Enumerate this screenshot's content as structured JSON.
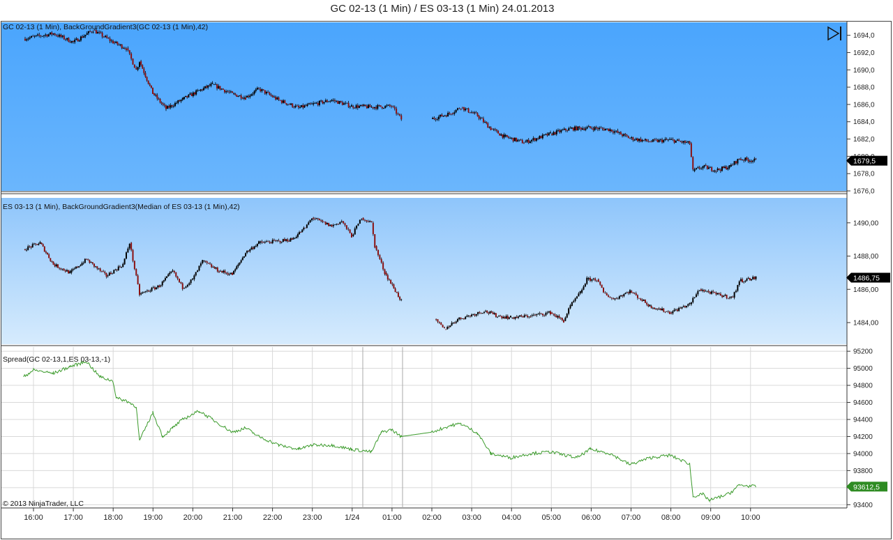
{
  "title": "GC 02-13 (1 Min) / ES 03-13 (1 Min)  24.01.2013",
  "copyright": "© 2013 NinjaTrader, LLC",
  "colors": {
    "panel1_top": "#4aa5fd",
    "panel1_bottom": "#6bb6fd",
    "panel2_top": "#8ec5fb",
    "panel2_bottom": "#d6ebfd",
    "candle_up": "#000000",
    "candle_down": "#8b1010",
    "spread_line": "#3a9a2a",
    "label_bg": "#000000",
    "spread_label_bg": "#2e8b22",
    "grid": "#d8d8d8"
  },
  "chart_data": [
    {
      "type": "line",
      "chart_kind": "candlestick",
      "label": "GC 02-13 (1 Min), BackGroundGradient3(GC 02-13 (1 Min),42)",
      "current_value_label": "1679,5",
      "y_ticks": [
        "1694,0",
        "1692,0",
        "1690,0",
        "1688,0",
        "1686,0",
        "1684,0",
        "1682,0",
        "1680,0",
        "1678,0",
        "1676,0"
      ],
      "ylim": [
        1676,
        1695.5
      ],
      "x": [
        "15:45",
        "16:30",
        "17:00",
        "17:30",
        "18:00",
        "18:20",
        "18:35",
        "18:40",
        "19:00",
        "19:20",
        "19:45",
        "20:10",
        "20:30",
        "21:00",
        "21:20",
        "21:40",
        "22:10",
        "22:40",
        "23:00",
        "23:30",
        "00:00",
        "00:30",
        "01:00",
        "01:15",
        "02:00",
        "02:30",
        "02:45",
        "03:10",
        "03:30",
        "03:50",
        "04:20",
        "05:00",
        "05:30",
        "06:00",
        "06:30",
        "07:00",
        "07:30",
        "08:00",
        "08:30",
        "08:35",
        "08:50",
        "09:10",
        "09:30",
        "09:45",
        "10:10"
      ],
      "values": [
        1693.6,
        1694.2,
        1693.2,
        1694.6,
        1693.2,
        1692.5,
        1690.0,
        1691.0,
        1687.3,
        1685.5,
        1686.6,
        1687.6,
        1688.3,
        1687.2,
        1686.8,
        1687.8,
        1686.5,
        1685.6,
        1686.0,
        1686.5,
        1685.8,
        1685.7,
        1685.8,
        1684.3,
        1684.3,
        1685.0,
        1685.7,
        1684.7,
        1683.2,
        1682.3,
        1681.6,
        1682.6,
        1683.2,
        1683.3,
        1683.1,
        1682.1,
        1681.7,
        1681.9,
        1681.5,
        1678.3,
        1678.8,
        1678.4,
        1678.8,
        1679.7,
        1679.5
      ],
      "gaps_after": [
        "01:15"
      ]
    },
    {
      "type": "line",
      "chart_kind": "candlestick",
      "label": "ES 03-13 (1 Min), BackGroundGradient3(Median of ES 03-13 (1 Min),42)",
      "current_value_label": "1486,75",
      "y_ticks": [
        "1490,00",
        "1488,00",
        "1486,00",
        "1484,00"
      ],
      "ylim": [
        1482.7,
        1491.5
      ],
      "x": [
        "15:45",
        "16:10",
        "16:30",
        "16:55",
        "17:20",
        "17:50",
        "18:15",
        "18:25",
        "18:40",
        "19:10",
        "19:30",
        "19:45",
        "20:00",
        "20:15",
        "20:40",
        "21:00",
        "21:20",
        "21:40",
        "22:10",
        "22:30",
        "22:50",
        "23:00",
        "23:30",
        "23:45",
        "00:00",
        "00:15",
        "00:30",
        "00:35",
        "00:50",
        "01:15",
        "02:05",
        "02:20",
        "02:40",
        "03:20",
        "03:40",
        "04:00",
        "04:30",
        "05:00",
        "05:20",
        "05:30",
        "05:45",
        "05:55",
        "06:10",
        "06:20",
        "06:35",
        "07:00",
        "07:30",
        "08:00",
        "08:30",
        "08:45",
        "09:10",
        "09:35",
        "09:45",
        "10:10"
      ],
      "values": [
        1488.4,
        1488.8,
        1487.5,
        1487.0,
        1487.8,
        1486.8,
        1487.5,
        1488.8,
        1485.7,
        1486.2,
        1487.1,
        1486.1,
        1486.6,
        1487.7,
        1487.1,
        1486.9,
        1488.2,
        1488.8,
        1488.9,
        1489.0,
        1489.7,
        1490.3,
        1489.8,
        1490.1,
        1489.2,
        1490.3,
        1490.0,
        1488.6,
        1487.0,
        1485.3,
        1484.2,
        1483.6,
        1484.2,
        1484.7,
        1484.4,
        1484.3,
        1484.4,
        1484.6,
        1484.1,
        1485.0,
        1485.8,
        1486.6,
        1486.6,
        1485.8,
        1485.4,
        1485.9,
        1485.0,
        1484.6,
        1485.1,
        1486.0,
        1485.7,
        1485.5,
        1486.5,
        1486.7
      ],
      "gaps_after": [
        "01:15"
      ]
    },
    {
      "type": "line",
      "label": "Spread(GC 02-13,1,ES 03-13,-1)",
      "current_value_label": "93612,5",
      "y_ticks": [
        "95200",
        "95000",
        "94800",
        "94600",
        "94400",
        "94200",
        "94000",
        "93800",
        "93600",
        "93400"
      ],
      "ylim": [
        93370,
        95250
      ],
      "x": [
        "15:45",
        "16:00",
        "16:30",
        "16:55",
        "17:20",
        "17:40",
        "18:00",
        "18:05",
        "18:20",
        "18:35",
        "18:40",
        "19:00",
        "19:15",
        "19:30",
        "19:45",
        "20:10",
        "20:30",
        "21:00",
        "21:20",
        "21:40",
        "22:10",
        "22:40",
        "23:00",
        "23:30",
        "00:00",
        "00:30",
        "00:45",
        "01:00",
        "01:15",
        "02:00",
        "02:30",
        "02:45",
        "03:10",
        "03:30",
        "04:00",
        "04:30",
        "05:00",
        "05:40",
        "06:00",
        "06:30",
        "07:00",
        "07:30",
        "08:00",
        "08:30",
        "08:35",
        "08:50",
        "09:00",
        "09:30",
        "09:45",
        "10:10"
      ],
      "values": [
        94900,
        94980,
        94940,
        95020,
        95080,
        94900,
        94850,
        94650,
        94620,
        94550,
        94150,
        94480,
        94200,
        94300,
        94400,
        94500,
        94400,
        94250,
        94300,
        94200,
        94100,
        94050,
        94100,
        94100,
        94050,
        94020,
        94250,
        94280,
        94200,
        94250,
        94330,
        94350,
        94240,
        94000,
        93950,
        94000,
        94020,
        93950,
        94050,
        94000,
        93870,
        93950,
        93980,
        93880,
        93500,
        93520,
        93450,
        93530,
        93630,
        93612
      ]
    }
  ],
  "x_ticks": [
    "16:00",
    "17:00",
    "18:00",
    "19:00",
    "20:00",
    "21:00",
    "22:00",
    "23:00",
    "1/24",
    "01:00",
    "02:00",
    "03:00",
    "04:00",
    "05:00",
    "06:00",
    "07:00",
    "08:00",
    "09:00",
    "10:00"
  ]
}
